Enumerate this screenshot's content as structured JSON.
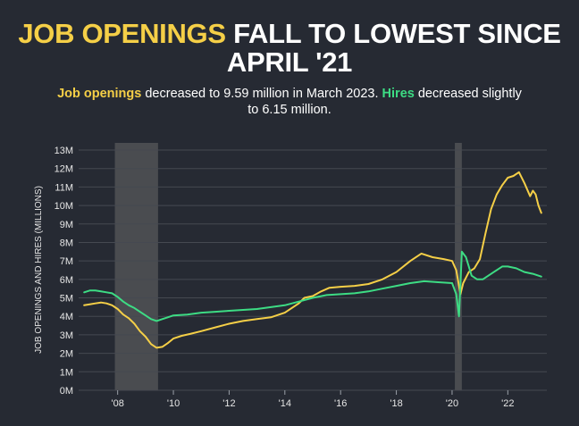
{
  "header": {
    "title_highlight": "JOB OPENINGS",
    "title_rest_line1": " FALL TO LOWEST SINCE",
    "title_line2": "APRIL '21",
    "subtitle_job_openings": "Job openings",
    "subtitle_part1": " decreased to 9.59 million in March 2023. ",
    "subtitle_hires": "Hires",
    "subtitle_part2": " decreased slightly",
    "subtitle_line2": "to 6.15 million."
  },
  "colors": {
    "background": "#262a33",
    "openings": "#f5cf47",
    "hires": "#3ddc84",
    "recession": "#4a4c50",
    "grid": "#454951",
    "text": "#ffffff"
  },
  "chart_data": {
    "type": "line",
    "ylabel": "JOB OPENINGS AND HIRES (MILLIONS)",
    "xlabel": "",
    "ylim": [
      0,
      13
    ],
    "xlim": [
      2006.6,
      2023.4
    ],
    "y_ticks": [
      0,
      1,
      2,
      3,
      4,
      5,
      6,
      7,
      8,
      9,
      10,
      11,
      12,
      13
    ],
    "y_tick_labels": [
      "0M",
      "1M",
      "2M",
      "3M",
      "4M",
      "5M",
      "6M",
      "7M",
      "8M",
      "9M",
      "10M",
      "11M",
      "12M",
      "13M"
    ],
    "x_ticks": [
      2008,
      2010,
      2012,
      2014,
      2016,
      2018,
      2020,
      2022
    ],
    "x_tick_labels": [
      "'08",
      "'10",
      "'12",
      "'14",
      "'16",
      "'18",
      "'20",
      "'22"
    ],
    "grid": true,
    "recessions": [
      [
        2007.9,
        2009.45
      ],
      [
        2020.1,
        2020.35
      ]
    ],
    "series": [
      {
        "name": "Job openings",
        "color": "#f5cf47",
        "x": [
          2006.8,
          2007.0,
          2007.2,
          2007.4,
          2007.6,
          2007.8,
          2008.0,
          2008.2,
          2008.4,
          2008.6,
          2008.8,
          2009.0,
          2009.2,
          2009.4,
          2009.6,
          2009.8,
          2010.0,
          2010.3,
          2010.6,
          2011.0,
          2011.5,
          2012.0,
          2012.5,
          2013.0,
          2013.5,
          2014.0,
          2014.5,
          2014.7,
          2015.0,
          2015.3,
          2015.6,
          2016.0,
          2016.5,
          2017.0,
          2017.5,
          2018.0,
          2018.5,
          2018.9,
          2019.3,
          2019.7,
          2020.0,
          2020.15,
          2020.3,
          2020.4,
          2020.6,
          2020.8,
          2021.0,
          2021.2,
          2021.4,
          2021.6,
          2021.8,
          2022.0,
          2022.2,
          2022.4,
          2022.6,
          2022.8,
          2022.9,
          2023.0,
          2023.1,
          2023.2
        ],
        "y": [
          4.6,
          4.65,
          4.7,
          4.75,
          4.7,
          4.6,
          4.4,
          4.1,
          3.9,
          3.6,
          3.2,
          2.9,
          2.5,
          2.3,
          2.35,
          2.55,
          2.8,
          2.95,
          3.05,
          3.2,
          3.4,
          3.6,
          3.75,
          3.85,
          3.95,
          4.2,
          4.7,
          5.0,
          5.1,
          5.35,
          5.55,
          5.6,
          5.65,
          5.75,
          6.0,
          6.4,
          7.0,
          7.4,
          7.2,
          7.1,
          7.0,
          6.5,
          5.2,
          5.8,
          6.4,
          6.6,
          7.1,
          8.5,
          9.8,
          10.6,
          11.1,
          11.5,
          11.6,
          11.8,
          11.2,
          10.5,
          10.8,
          10.6,
          10.0,
          9.6
        ]
      },
      {
        "name": "Hires",
        "color": "#3ddc84",
        "x": [
          2006.8,
          2007.0,
          2007.2,
          2007.4,
          2007.6,
          2007.8,
          2008.0,
          2008.2,
          2008.4,
          2008.6,
          2008.8,
          2009.0,
          2009.2,
          2009.4,
          2009.6,
          2009.8,
          2010.0,
          2010.5,
          2011.0,
          2011.5,
          2012.0,
          2012.5,
          2013.0,
          2013.5,
          2014.0,
          2014.5,
          2015.0,
          2015.5,
          2016.0,
          2016.5,
          2017.0,
          2017.5,
          2018.0,
          2018.5,
          2019.0,
          2019.5,
          2020.0,
          2020.15,
          2020.25,
          2020.35,
          2020.5,
          2020.7,
          2020.9,
          2021.1,
          2021.3,
          2021.5,
          2021.8,
          2022.0,
          2022.3,
          2022.6,
          2022.9,
          2023.2
        ],
        "y": [
          5.3,
          5.4,
          5.4,
          5.35,
          5.3,
          5.25,
          5.05,
          4.8,
          4.6,
          4.45,
          4.25,
          4.05,
          3.85,
          3.75,
          3.85,
          3.95,
          4.05,
          4.1,
          4.2,
          4.25,
          4.3,
          4.35,
          4.4,
          4.5,
          4.6,
          4.8,
          5.0,
          5.15,
          5.2,
          5.25,
          5.35,
          5.5,
          5.65,
          5.8,
          5.9,
          5.85,
          5.8,
          5.2,
          4.0,
          7.5,
          7.2,
          6.2,
          6.0,
          6.0,
          6.2,
          6.4,
          6.7,
          6.7,
          6.6,
          6.4,
          6.3,
          6.15
        ]
      }
    ]
  }
}
